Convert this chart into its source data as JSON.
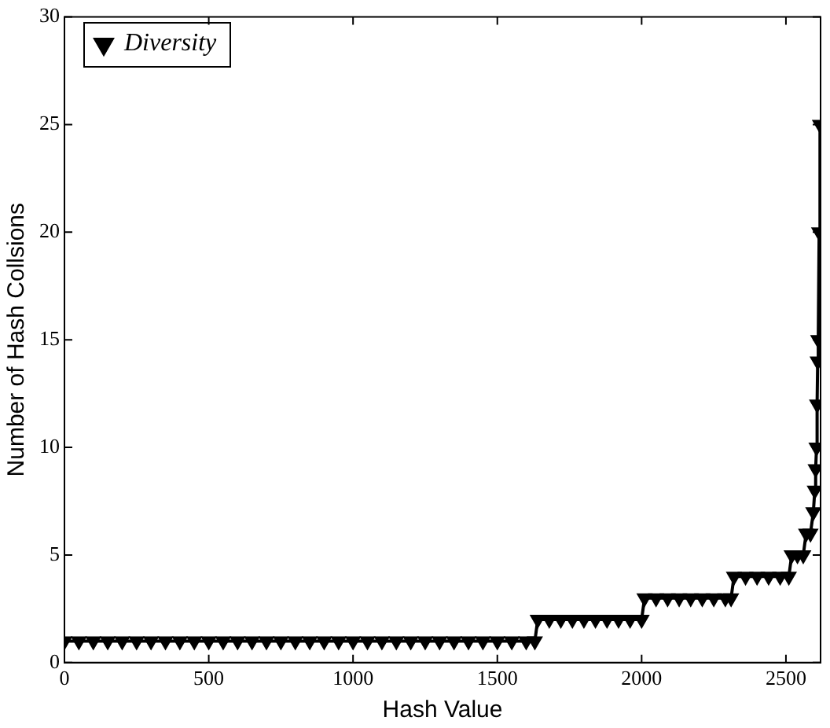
{
  "chart_data": {
    "type": "line",
    "xlabel": "Hash Value",
    "ylabel": "Number of Hash Collsions",
    "xlim": [
      0,
      2620
    ],
    "ylim": [
      0,
      30
    ],
    "xticks": [
      0,
      500,
      1000,
      1500,
      2000,
      2500
    ],
    "yticks": [
      0,
      5,
      10,
      15,
      20,
      25,
      30
    ],
    "grid": false,
    "legend": "top left",
    "marker": "triangle",
    "line_style": "solid",
    "series": [
      {
        "name": "Diversity",
        "color": "#000000",
        "x": [
          0,
          50,
          100,
          150,
          200,
          250,
          300,
          350,
          400,
          450,
          500,
          550,
          600,
          650,
          700,
          750,
          800,
          850,
          900,
          950,
          1000,
          1050,
          1100,
          1150,
          1200,
          1250,
          1300,
          1350,
          1400,
          1450,
          1500,
          1550,
          1600,
          1630,
          1640,
          1680,
          1720,
          1760,
          1800,
          1840,
          1880,
          1920,
          1960,
          2000,
          2010,
          2050,
          2090,
          2130,
          2170,
          2210,
          2250,
          2290,
          2310,
          2320,
          2360,
          2400,
          2440,
          2480,
          2510,
          2520,
          2540,
          2560,
          2570,
          2585,
          2595,
          2600,
          2603,
          2606,
          2608,
          2610,
          2612,
          2615,
          2618
        ],
        "values": [
          1,
          1,
          1,
          1,
          1,
          1,
          1,
          1,
          1,
          1,
          1,
          1,
          1,
          1,
          1,
          1,
          1,
          1,
          1,
          1,
          1,
          1,
          1,
          1,
          1,
          1,
          1,
          1,
          1,
          1,
          1,
          1,
          1,
          1,
          2,
          2,
          2,
          2,
          2,
          2,
          2,
          2,
          2,
          2,
          3,
          3,
          3,
          3,
          3,
          3,
          3,
          3,
          3,
          4,
          4,
          4,
          4,
          4,
          4,
          5,
          5,
          5,
          6,
          6,
          7,
          8,
          9,
          10,
          12,
          14,
          15,
          20,
          25
        ]
      }
    ]
  }
}
